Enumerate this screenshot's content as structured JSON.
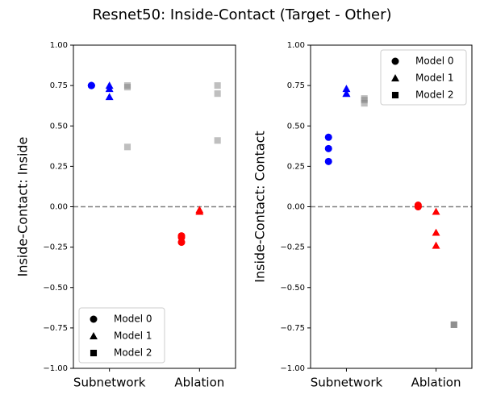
{
  "title": "Resnet50: Inside-Contact (Target - Other)",
  "chart_data": [
    {
      "type": "scatter",
      "ylabel": "Inside-Contact: Inside",
      "categories": [
        "Subnetwork",
        "Ablation"
      ],
      "xlim": [
        -0.4,
        1.4
      ],
      "ylim": [
        -1,
        1
      ],
      "yticks": [
        {
          "value": -1,
          "label": "−1.00"
        },
        {
          "value": -0.75,
          "label": "−0.75"
        },
        {
          "value": -0.5,
          "label": "−0.50"
        },
        {
          "value": -0.25,
          "label": "−0.25"
        },
        {
          "value": 0,
          "label": "0.00"
        },
        {
          "value": 0.25,
          "label": "0.25"
        },
        {
          "value": 0.5,
          "label": "0.50"
        },
        {
          "value": 0.75,
          "label": "0.75"
        },
        {
          "value": 1,
          "label": "1.00"
        }
      ],
      "hline": 0,
      "legend": "lower left",
      "series": [
        {
          "name": "Model 0",
          "marker": "circle",
          "colors": [
            "blue",
            "red"
          ],
          "values": [
            [
              0.75,
              0.75,
              0.75
            ],
            [
              -0.18,
              -0.19,
              -0.22
            ]
          ]
        },
        {
          "name": "Model 1",
          "marker": "triangle",
          "colors": [
            "blue",
            "red"
          ],
          "values": [
            [
              0.75,
              0.73,
              0.68
            ],
            [
              -0.02,
              -0.02,
              -0.03
            ]
          ]
        },
        {
          "name": "Model 2",
          "marker": "square",
          "colors": [
            "gray",
            "gray"
          ],
          "alpha": 0.5,
          "values": [
            [
              0.75,
              0.74,
              0.37
            ],
            [
              0.75,
              0.7,
              0.41
            ]
          ]
        }
      ]
    },
    {
      "type": "scatter",
      "ylabel": "Inside-Contact: Contact",
      "categories": [
        "Subnetwork",
        "Ablation"
      ],
      "xlim": [
        -0.4,
        1.4
      ],
      "ylim": [
        -1,
        1
      ],
      "yticks": [
        {
          "value": -1,
          "label": "−1.00"
        },
        {
          "value": -0.75,
          "label": "−0.75"
        },
        {
          "value": -0.5,
          "label": "−0.50"
        },
        {
          "value": -0.25,
          "label": "−0.25"
        },
        {
          "value": 0,
          "label": "0.00"
        },
        {
          "value": 0.25,
          "label": "0.25"
        },
        {
          "value": 0.5,
          "label": "0.50"
        },
        {
          "value": 0.75,
          "label": "0.75"
        },
        {
          "value": 1,
          "label": "1.00"
        }
      ],
      "hline": 0,
      "legend": "upper right",
      "series": [
        {
          "name": "Model 0",
          "marker": "circle",
          "colors": [
            "blue",
            "red"
          ],
          "values": [
            [
              0.43,
              0.36,
              0.28
            ],
            [
              0.0,
              0.0,
              0.01
            ]
          ]
        },
        {
          "name": "Model 1",
          "marker": "triangle",
          "colors": [
            "blue",
            "red"
          ],
          "values": [
            [
              0.73,
              0.7,
              0.7
            ],
            [
              -0.03,
              -0.16,
              -0.24
            ]
          ]
        },
        {
          "name": "Model 2",
          "marker": "square",
          "colors": [
            "gray",
            "gray"
          ],
          "alpha": 0.5,
          "values": [
            [
              0.67,
              0.66,
              0.64
            ],
            [
              -0.73,
              -0.73,
              -0.73
            ]
          ]
        }
      ]
    }
  ]
}
